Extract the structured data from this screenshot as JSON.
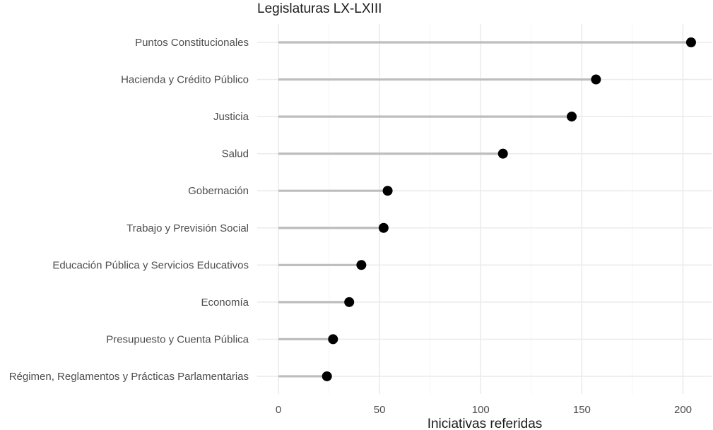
{
  "chart_data": {
    "type": "lollipop",
    "title": "Legislaturas LX-LXIII",
    "xlabel": "Iniciativas referidas",
    "ylabel": "",
    "xlim": [
      0,
      215
    ],
    "xticks": [
      0,
      50,
      100,
      150,
      200
    ],
    "xtick_labels": [
      "0",
      "50",
      "100",
      "150",
      "200"
    ],
    "grid": true,
    "categories": [
      "Puntos Constitucionales",
      "Hacienda y Crédito Público",
      "Justicia",
      "Salud",
      "Gobernación",
      "Trabajo y Previsión Social",
      "Educación Pública y Servicios Educativos",
      "Economía",
      "Presupuesto y Cuenta Pública",
      "Régimen, Reglamentos y Prácticas Parlamentarias"
    ],
    "values": [
      204,
      157,
      145,
      111,
      54,
      52,
      41,
      35,
      27,
      24
    ],
    "colors": {
      "stem": "#bdbdbd",
      "point": "#000000",
      "grid_major": "#ebebeb",
      "grid_minor": "#f5f5f5",
      "text": "#4d4d4d",
      "title": "#1a1a1a"
    }
  }
}
